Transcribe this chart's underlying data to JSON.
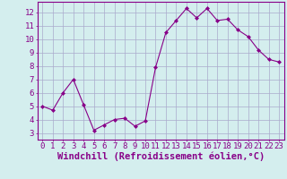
{
  "x": [
    0,
    1,
    2,
    3,
    4,
    5,
    6,
    7,
    8,
    9,
    10,
    11,
    12,
    13,
    14,
    15,
    16,
    17,
    18,
    19,
    20,
    21,
    22,
    23
  ],
  "y": [
    5.0,
    4.7,
    6.0,
    7.0,
    5.1,
    3.2,
    3.6,
    4.0,
    4.1,
    3.5,
    3.9,
    7.9,
    10.5,
    11.4,
    12.3,
    11.6,
    12.3,
    11.4,
    11.5,
    10.7,
    10.2,
    9.2,
    8.5,
    8.3
  ],
  "line_color": "#880088",
  "marker": "D",
  "marker_size": 2,
  "bg_color": "#d4eeee",
  "grid_color": "#aaaacc",
  "xlabel": "Windchill (Refroidissement éolien,°C)",
  "ylabel": "",
  "xlim": [
    -0.5,
    23.5
  ],
  "ylim": [
    2.5,
    12.8
  ],
  "yticks": [
    3,
    4,
    5,
    6,
    7,
    8,
    9,
    10,
    11,
    12
  ],
  "xticks": [
    0,
    1,
    2,
    3,
    4,
    5,
    6,
    7,
    8,
    9,
    10,
    11,
    12,
    13,
    14,
    15,
    16,
    17,
    18,
    19,
    20,
    21,
    22,
    23
  ],
  "spine_color": "#880088",
  "xlabel_fontsize": 7.5,
  "tick_fontsize": 6.5
}
